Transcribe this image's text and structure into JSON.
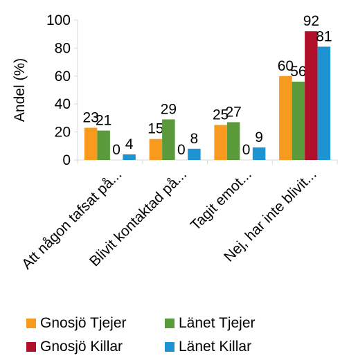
{
  "chart_data": {
    "type": "bar",
    "ylabel": "Andel (%)",
    "ylim": [
      0,
      100
    ],
    "yticks": [
      0,
      20,
      40,
      60,
      80,
      100
    ],
    "grid": false,
    "legend_position": "bottom",
    "categories": [
      "Att någon tafsat på...",
      "Blivit kontaktad på...",
      "Tagit emot...",
      "Nej, har inte blivit..."
    ],
    "series": [
      {
        "name": "Gnosjö Tjejer",
        "color": "#f79a1e",
        "values": [
          23,
          15,
          25,
          60
        ]
      },
      {
        "name": "Länet Tjejer",
        "color": "#5b9a3b",
        "values": [
          21,
          29,
          27,
          56
        ]
      },
      {
        "name": "Gnosjö Killar",
        "color": "#b0102a",
        "values": [
          0,
          0,
          0,
          92
        ]
      },
      {
        "name": "Länet Killar",
        "color": "#1d93d2",
        "values": [
          4,
          8,
          9,
          81
        ]
      }
    ]
  }
}
